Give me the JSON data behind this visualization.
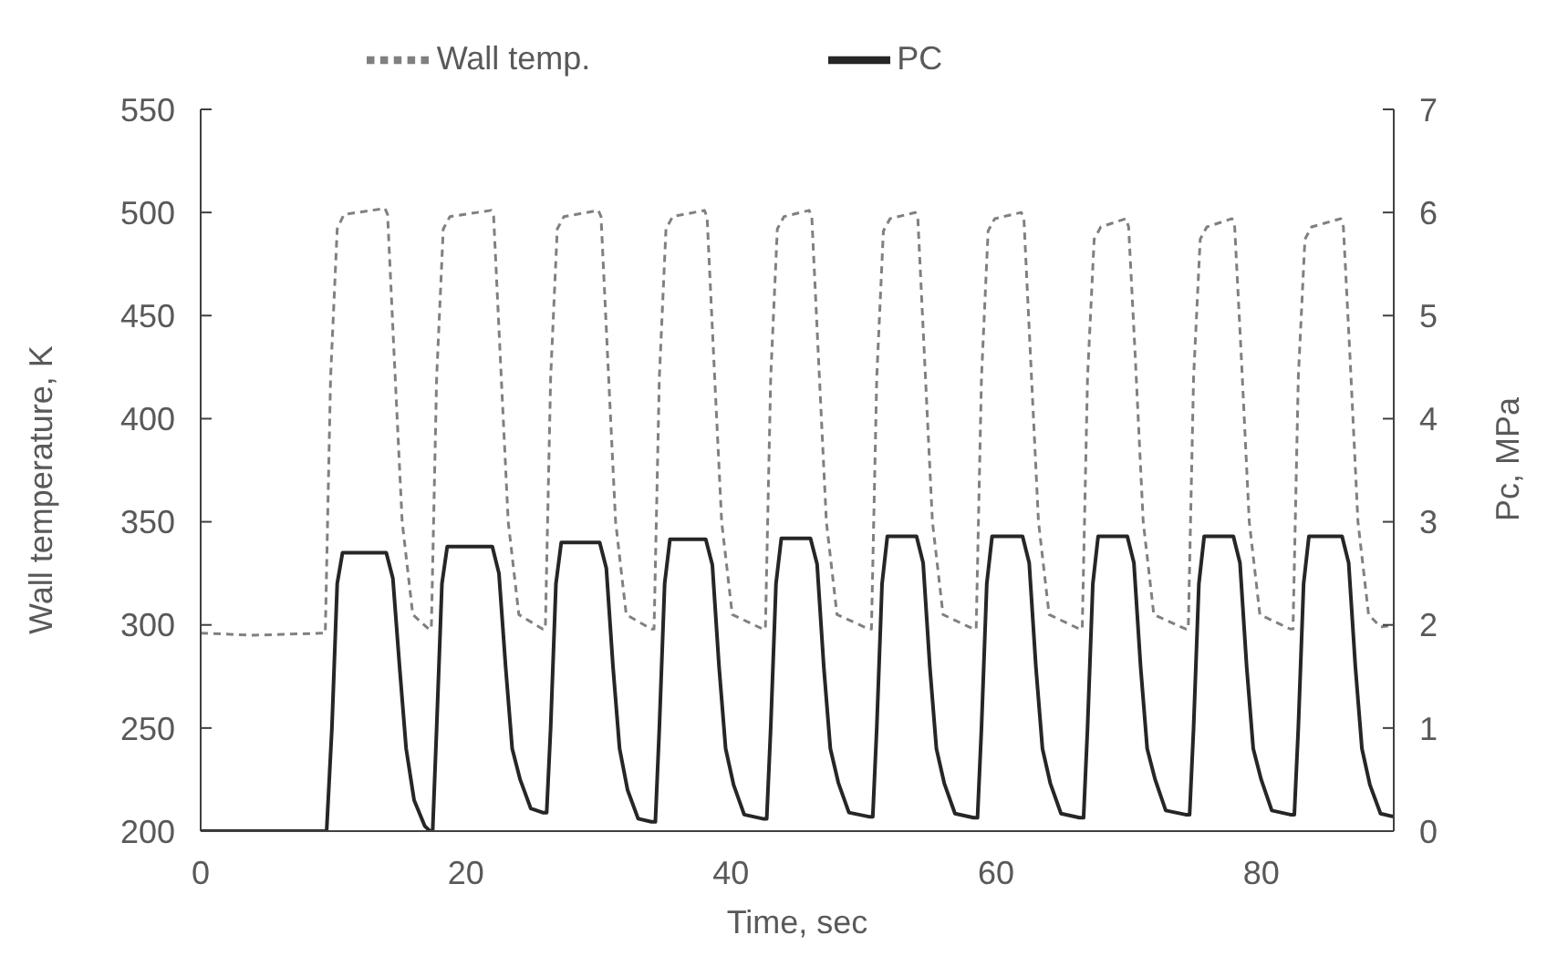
{
  "chart_data": {
    "type": "line",
    "xlabel": "Time, sec",
    "ylabel": "Wall temperature,   K",
    "y2label": "Pc, MPa",
    "legend": "top",
    "xlim": [
      0,
      90
    ],
    "xticks": [
      0,
      20,
      40,
      60,
      80
    ],
    "ylim": [
      200,
      550
    ],
    "yticks": [
      200,
      250,
      300,
      350,
      400,
      450,
      500,
      550
    ],
    "y2lim": [
      0,
      7
    ],
    "y2ticks": [
      0,
      1,
      2,
      3,
      4,
      5,
      6,
      7
    ],
    "series": [
      {
        "name": "Wall temp.",
        "color": "#808080",
        "line_style": "dashed",
        "x": [
          0,
          4,
          9.2,
          9.4,
          9.8,
          10.3,
          10.8,
          13.9,
          14.1,
          14.6,
          15.2,
          16.0,
          17.2,
          17.4,
          17.8,
          18.3,
          18.8,
          21.9,
          22.1,
          22.6,
          23.2,
          24.0,
          25.8,
          26.0,
          26.4,
          26.9,
          27.4,
          30.0,
          30.2,
          30.7,
          31.3,
          32.1,
          34.0,
          34.2,
          34.6,
          35.1,
          35.6,
          38.0,
          38.2,
          38.7,
          39.3,
          40.1,
          42.4,
          42.6,
          43.0,
          43.5,
          44.0,
          45.9,
          46.1,
          46.6,
          47.2,
          48.0,
          50.4,
          50.6,
          51.0,
          51.5,
          52.0,
          53.9,
          54.1,
          54.6,
          55.2,
          56.0,
          58.3,
          58.5,
          58.9,
          59.4,
          59.9,
          61.9,
          62.1,
          62.6,
          63.2,
          64.0,
          66.3,
          66.5,
          66.9,
          67.4,
          67.9,
          69.8,
          70.0,
          70.5,
          71.1,
          71.9,
          74.3,
          74.5,
          74.9,
          75.4,
          75.9,
          77.8,
          78.0,
          78.5,
          79.1,
          79.9,
          82.2,
          82.4,
          82.8,
          83.3,
          83.8,
          86.0,
          86.2,
          86.7,
          87.3,
          88.1,
          89.0,
          90
        ],
        "values": [
          296,
          295,
          296,
          296,
          420,
          492,
          499,
          502,
          499,
          430,
          350,
          305,
          298,
          298,
          420,
          492,
          498,
          501,
          498,
          430,
          350,
          305,
          298,
          298,
          420,
          492,
          498,
          501,
          498,
          430,
          350,
          305,
          298,
          298,
          420,
          492,
          498,
          501,
          498,
          430,
          350,
          305,
          298,
          298,
          420,
          492,
          498,
          501,
          498,
          430,
          350,
          305,
          298,
          298,
          420,
          491,
          497,
          500,
          497,
          430,
          350,
          305,
          298,
          298,
          420,
          491,
          497,
          500,
          497,
          430,
          350,
          305,
          298,
          298,
          420,
          487,
          493,
          497,
          493,
          430,
          350,
          305,
          298,
          298,
          420,
          487,
          493,
          497,
          493,
          430,
          350,
          305,
          298,
          298,
          420,
          487,
          493,
          497,
          493,
          430,
          350,
          305,
          299,
          300
        ]
      },
      {
        "name": "PC",
        "color": "#262626",
        "line_style": "solid",
        "axis": "y2",
        "x": [
          0,
          9.5,
          9.9,
          10.3,
          10.7,
          14.0,
          14.5,
          15.0,
          15.5,
          16.1,
          16.9,
          17.3,
          17.5,
          17.8,
          18.2,
          18.6,
          22.0,
          22.5,
          23.0,
          23.5,
          24.1,
          24.9,
          25.8,
          26.1,
          26.4,
          26.8,
          27.2,
          30.1,
          30.6,
          31.1,
          31.6,
          32.2,
          33.0,
          34.0,
          34.3,
          34.6,
          35.0,
          35.4,
          38.1,
          38.6,
          39.1,
          39.6,
          40.2,
          41.0,
          42.4,
          42.7,
          43.0,
          43.4,
          43.8,
          46.0,
          46.5,
          47.0,
          47.5,
          48.1,
          48.9,
          50.4,
          50.7,
          51.0,
          51.4,
          51.8,
          54.0,
          54.5,
          55.0,
          55.5,
          56.1,
          56.9,
          58.3,
          58.6,
          58.9,
          59.3,
          59.7,
          62.0,
          62.5,
          63.0,
          63.5,
          64.1,
          64.9,
          66.3,
          66.6,
          66.9,
          67.3,
          67.7,
          69.9,
          70.4,
          70.9,
          71.4,
          72.0,
          72.8,
          74.3,
          74.6,
          74.9,
          75.3,
          75.7,
          77.9,
          78.4,
          78.9,
          79.4,
          80.0,
          80.8,
          82.2,
          82.5,
          82.8,
          83.2,
          83.6,
          86.1,
          86.6,
          87.1,
          87.6,
          88.2,
          89.0,
          90
        ],
        "values": [
          0,
          0,
          1.0,
          2.4,
          2.7,
          2.7,
          2.45,
          1.6,
          0.8,
          0.3,
          0.05,
          0,
          0,
          1.0,
          2.4,
          2.76,
          2.76,
          2.5,
          1.6,
          0.8,
          0.5,
          0.22,
          0.18,
          0.18,
          1.0,
          2.4,
          2.8,
          2.8,
          2.55,
          1.6,
          0.8,
          0.4,
          0.12,
          0.09,
          0.09,
          1.0,
          2.4,
          2.83,
          2.83,
          2.58,
          1.6,
          0.8,
          0.45,
          0.16,
          0.12,
          0.12,
          1.0,
          2.4,
          2.84,
          2.84,
          2.59,
          1.6,
          0.8,
          0.47,
          0.18,
          0.14,
          0.14,
          1.0,
          2.4,
          2.86,
          2.86,
          2.6,
          1.6,
          0.8,
          0.46,
          0.17,
          0.13,
          0.13,
          1.0,
          2.4,
          2.86,
          2.86,
          2.6,
          1.6,
          0.8,
          0.46,
          0.17,
          0.13,
          0.13,
          1.0,
          2.4,
          2.86,
          2.86,
          2.6,
          1.6,
          0.8,
          0.5,
          0.2,
          0.16,
          0.16,
          1.0,
          2.4,
          2.86,
          2.86,
          2.6,
          1.6,
          0.8,
          0.5,
          0.2,
          0.16,
          0.16,
          1.0,
          2.4,
          2.86,
          2.86,
          2.6,
          1.6,
          0.8,
          0.45,
          0.17,
          0.14
        ]
      }
    ]
  }
}
